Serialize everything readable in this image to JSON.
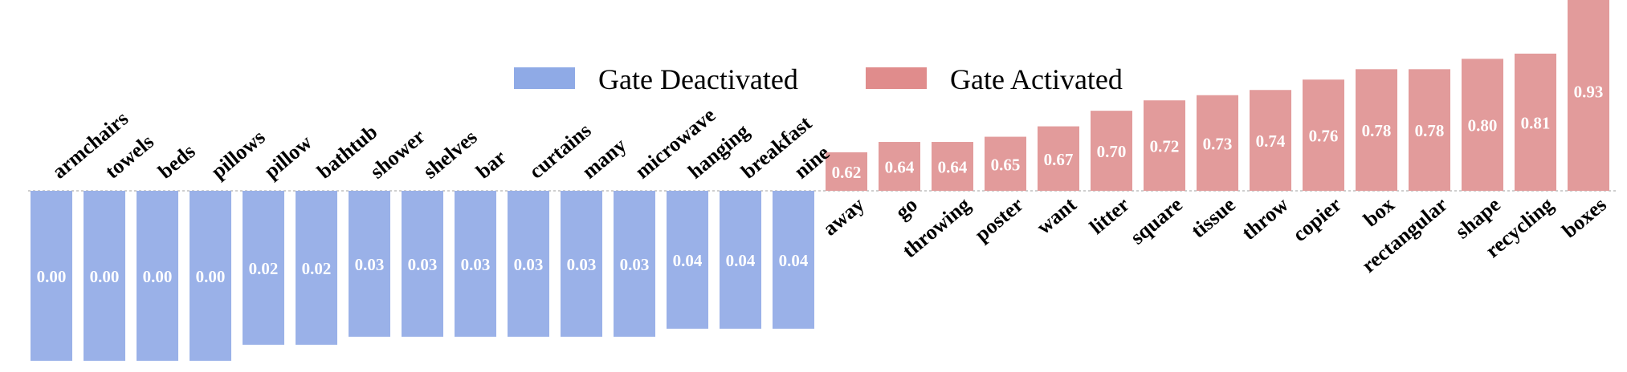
{
  "chart_data": {
    "type": "bar",
    "legend": {
      "placement": "top-center",
      "entries": [
        {
          "name": "Gate Deactivated",
          "color": "#8faae6"
        },
        {
          "name": "Gate Activated",
          "color": "#e08c8c"
        }
      ]
    },
    "series": [
      {
        "name": "Gate Deactivated",
        "color": "#9ab1e8",
        "categories": [
          "armchairs",
          "towels",
          "beds",
          "pillows",
          "pillow",
          "bathtub",
          "shower",
          "shelves",
          "bar",
          "curtains",
          "many",
          "microwave",
          "hanging",
          "breakfast",
          "nine"
        ],
        "values": [
          0.0,
          0.0,
          0.0,
          0.0,
          0.02,
          0.02,
          0.03,
          0.03,
          0.03,
          0.03,
          0.03,
          0.03,
          0.04,
          0.04,
          0.04
        ],
        "labels": [
          "0.00",
          "0.00",
          "0.00",
          "0.00",
          "0.02",
          "0.02",
          "0.03",
          "0.03",
          "0.03",
          "0.03",
          "0.03",
          "0.03",
          "0.04",
          "0.04",
          "0.04"
        ]
      },
      {
        "name": "Gate Activated",
        "color": "#e29b9b",
        "categories": [
          "away",
          "go",
          "throwing",
          "poster",
          "want",
          "litter",
          "square",
          "tissue",
          "throw",
          "copier",
          "box",
          "rectangular",
          "shape",
          "recycling",
          "boxes"
        ],
        "values": [
          0.62,
          0.64,
          0.64,
          0.65,
          0.67,
          0.7,
          0.72,
          0.73,
          0.74,
          0.76,
          0.78,
          0.78,
          0.8,
          0.81,
          0.93
        ],
        "labels": [
          "0.62",
          "0.64",
          "0.64",
          "0.65",
          "0.67",
          "0.70",
          "0.72",
          "0.73",
          "0.74",
          "0.76",
          "0.78",
          "0.78",
          "0.80",
          "0.81",
          "0.93"
        ]
      }
    ],
    "axis": {
      "baseline": "dotted",
      "grid": false
    }
  }
}
